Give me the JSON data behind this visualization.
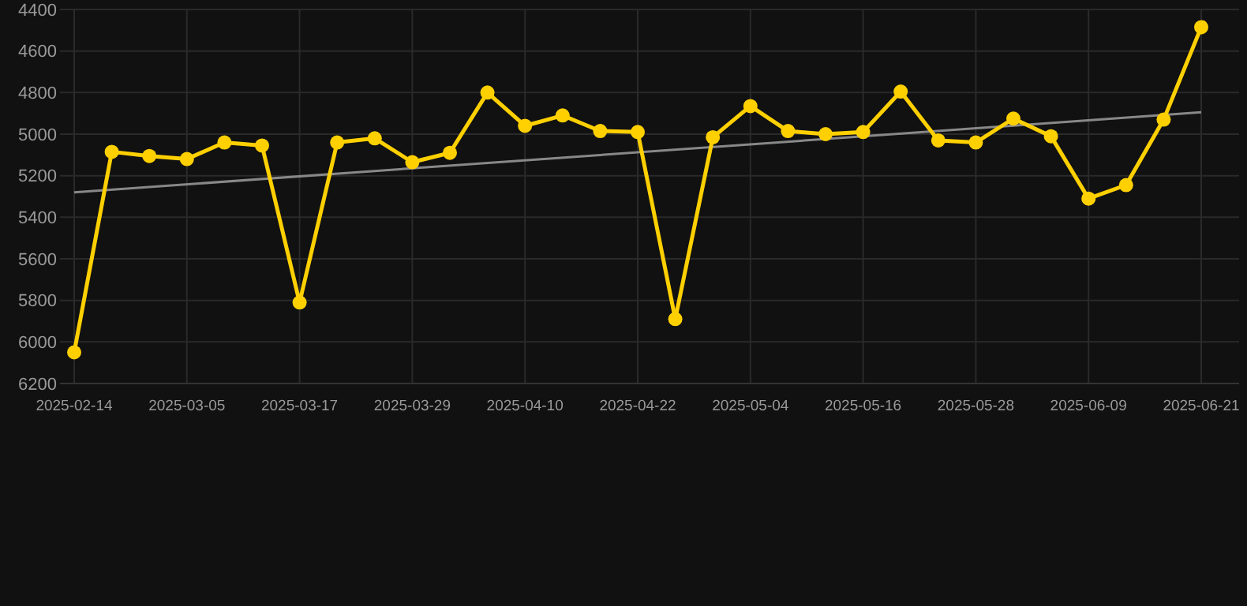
{
  "chart_data": {
    "type": "line",
    "categories": [
      "2025-02-14",
      null,
      null,
      "2025-03-05",
      null,
      null,
      "2025-03-17",
      null,
      null,
      "2025-03-29",
      null,
      null,
      "2025-04-10",
      null,
      null,
      "2025-04-22",
      null,
      null,
      "2025-05-04",
      null,
      null,
      "2025-05-16",
      null,
      null,
      "2025-05-28",
      null,
      null,
      "2025-06-09",
      null,
      null,
      "2025-06-21"
    ],
    "ylim": [
      6200,
      4400
    ],
    "yticks": [
      4400,
      4600,
      4800,
      5000,
      5200,
      5400,
      5600,
      5800,
      6000,
      6200
    ],
    "grid": true,
    "series": [
      {
        "color": "#ffd000",
        "marker": "circle",
        "values": [
          6050,
          5085,
          5105,
          5120,
          5040,
          5055,
          5810,
          5040,
          5020,
          5135,
          5090,
          4800,
          4960,
          4910,
          4985,
          4990,
          5890,
          5015,
          4865,
          4985,
          5000,
          4990,
          4795,
          5030,
          5040,
          4925,
          5010,
          5310,
          5245,
          4930,
          4485
        ]
      },
      {
        "color": "#888888",
        "marker": "none",
        "values": [
          5280,
          null,
          null,
          null,
          null,
          null,
          null,
          null,
          null,
          null,
          null,
          null,
          null,
          null,
          null,
          null,
          null,
          null,
          null,
          null,
          null,
          null,
          null,
          null,
          null,
          null,
          null,
          null,
          null,
          null,
          4895
        ]
      }
    ]
  }
}
